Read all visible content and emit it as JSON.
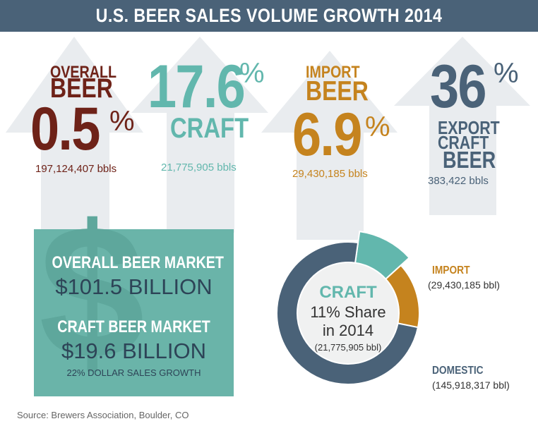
{
  "header": {
    "title": "U.S. BEER SALES VOLUME GROWTH 2014"
  },
  "stats": {
    "overall": {
      "label_line1": "OVERALL",
      "label_line2": "BEER",
      "growth": "0.5",
      "pct": "%",
      "volume": "197,124,407 bbls"
    },
    "craft": {
      "growth": "17.6",
      "pct": "%",
      "label": "CRAFT",
      "volume": "21,775,905 bbls"
    },
    "import": {
      "label_line1": "IMPORT",
      "label_line2": "BEER",
      "growth": "6.9",
      "pct": "%",
      "volume": "29,430,185 bbls"
    },
    "export": {
      "growth": "36",
      "pct": "%",
      "label_line1": "EXPORT",
      "label_line2": "CRAFT",
      "label_line3": "BEER",
      "volume": "383,422 bbls"
    }
  },
  "market": {
    "overall_label": "OVERALL BEER MARKET",
    "overall_value": "$101.5 BILLION",
    "craft_label": "CRAFT BEER MARKET",
    "craft_value": "$19.6 BILLION",
    "craft_growth": "22% DOLLAR SALES GROWTH",
    "dollar_glyph": "$"
  },
  "donut": {
    "center_title": "CRAFT",
    "center_line1": "11% Share",
    "center_line2": "in 2014",
    "center_volume": "(21,775,905 bbl)",
    "import_label": "IMPORT",
    "import_volume": "(29,430,185 bbl)",
    "domestic_label": "DOMESTIC",
    "domestic_volume": "(145,918,317 bbl)"
  },
  "colors": {
    "title_bar": "#4a6278",
    "overall": "#6e2218",
    "craft": "#62b7ad",
    "import": "#c5831e",
    "export": "#4a6278",
    "domestic": "#4a6278",
    "arrow_bg": "#e9ecef"
  },
  "chart_data": {
    "type": "pie",
    "title": "",
    "categories": [
      "Craft",
      "Import",
      "Domestic"
    ],
    "values": [
      21775905,
      29430185,
      145918317
    ],
    "share_percent": {
      "Craft": 11
    },
    "growth_percent": {
      "Overall Beer": 0.5,
      "Craft": 17.6,
      "Import Beer": 6.9,
      "Export Craft Beer": 36
    },
    "volumes_bbls": {
      "Overall Beer": 197124407,
      "Craft": 21775905,
      "Import Beer": 29430185,
      "Export Craft Beer": 383422
    },
    "market_billion_usd": {
      "Overall Beer Market": 101.5,
      "Craft Beer Market": 19.6
    },
    "craft_dollar_sales_growth_percent": 22
  },
  "footer": {
    "source": "Source: Brewers Association, Boulder, CO"
  }
}
